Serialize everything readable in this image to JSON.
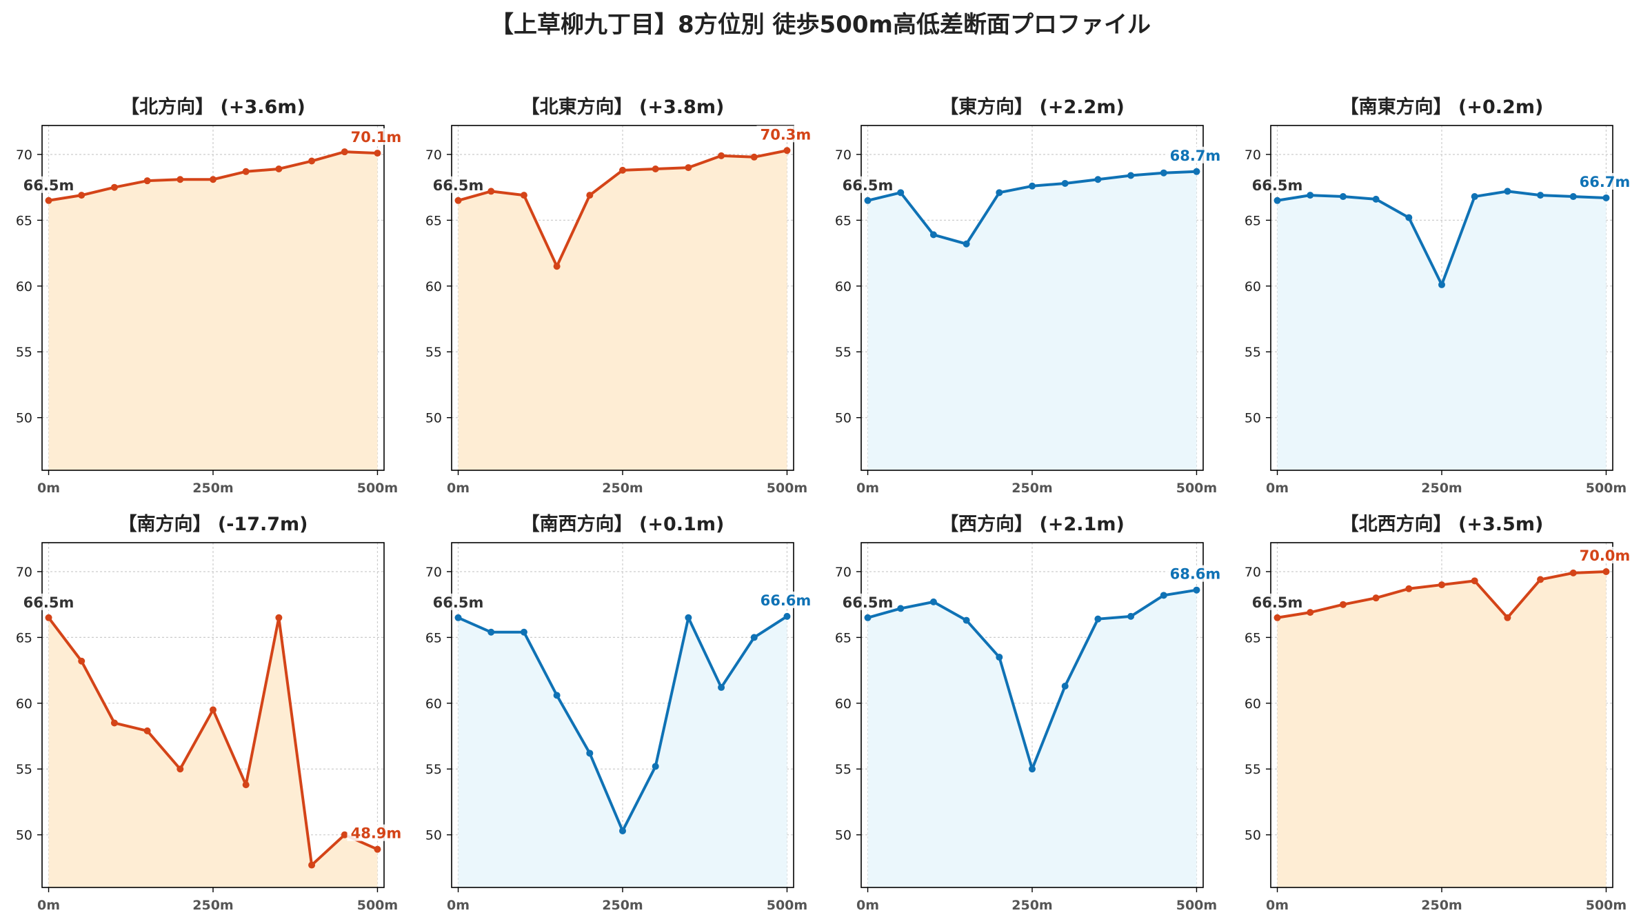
{
  "title": "【上草柳九丁目】8方位別 徒歩500m高低差断面プロファイル",
  "colors": {
    "up_line": "#D44418",
    "up_fill": "#FEEDD4",
    "flat_line": "#0F72B5",
    "flat_fill": "#EBF7FC",
    "grid": "#cccccc",
    "axis": "#000000"
  },
  "chart_data": [
    {
      "type": "area",
      "title": "【北方向】 (+3.6m)",
      "trend": "up",
      "x": [
        0,
        50,
        100,
        150,
        200,
        250,
        300,
        350,
        400,
        450,
        500
      ],
      "y": [
        66.5,
        66.9,
        67.5,
        68.0,
        68.1,
        68.1,
        68.7,
        68.9,
        69.5,
        70.2,
        70.1
      ],
      "x_ticks": [
        0,
        250,
        500
      ],
      "x_tick_labels": [
        "0m",
        "250m",
        "500m"
      ],
      "y_ticks": [
        50,
        55,
        60,
        65,
        70
      ],
      "ylim": [
        46,
        72.2
      ],
      "xlim": [
        -10,
        510
      ],
      "start_label": "66.5m",
      "end_label": "70.1m",
      "grid": true
    },
    {
      "type": "area",
      "title": "【北東方向】 (+3.8m)",
      "trend": "up",
      "x": [
        0,
        50,
        100,
        150,
        200,
        250,
        300,
        350,
        400,
        450,
        500
      ],
      "y": [
        66.5,
        67.2,
        66.9,
        61.5,
        66.9,
        68.8,
        68.9,
        69.0,
        69.9,
        69.8,
        70.3
      ],
      "x_ticks": [
        0,
        250,
        500
      ],
      "x_tick_labels": [
        "0m",
        "250m",
        "500m"
      ],
      "y_ticks": [
        50,
        55,
        60,
        65,
        70
      ],
      "ylim": [
        46,
        72.2
      ],
      "xlim": [
        -10,
        510
      ],
      "start_label": "66.5m",
      "end_label": "70.3m",
      "grid": true
    },
    {
      "type": "area",
      "title": "【東方向】 (+2.2m)",
      "trend": "flat",
      "x": [
        0,
        50,
        100,
        150,
        200,
        250,
        300,
        350,
        400,
        450,
        500
      ],
      "y": [
        66.5,
        67.1,
        63.9,
        63.2,
        67.1,
        67.6,
        67.8,
        68.1,
        68.4,
        68.6,
        68.7
      ],
      "x_ticks": [
        0,
        250,
        500
      ],
      "x_tick_labels": [
        "0m",
        "250m",
        "500m"
      ],
      "y_ticks": [
        50,
        55,
        60,
        65,
        70
      ],
      "ylim": [
        46,
        72.2
      ],
      "xlim": [
        -10,
        510
      ],
      "start_label": "66.5m",
      "end_label": "68.7m",
      "grid": true
    },
    {
      "type": "area",
      "title": "【南東方向】 (+0.2m)",
      "trend": "flat",
      "x": [
        0,
        50,
        100,
        150,
        200,
        250,
        300,
        350,
        400,
        450,
        500
      ],
      "y": [
        66.5,
        66.9,
        66.8,
        66.6,
        65.2,
        60.1,
        66.8,
        67.2,
        66.9,
        66.8,
        66.7
      ],
      "x_ticks": [
        0,
        250,
        500
      ],
      "x_tick_labels": [
        "0m",
        "250m",
        "500m"
      ],
      "y_ticks": [
        50,
        55,
        60,
        65,
        70
      ],
      "ylim": [
        46,
        72.2
      ],
      "xlim": [
        -10,
        510
      ],
      "start_label": "66.5m",
      "end_label": "66.7m",
      "grid": true
    },
    {
      "type": "area",
      "title": "【南方向】 (-17.7m)",
      "trend": "up",
      "x": [
        0,
        50,
        100,
        150,
        200,
        250,
        300,
        350,
        400,
        450,
        500
      ],
      "y": [
        66.5,
        63.2,
        58.5,
        57.9,
        55.0,
        59.5,
        53.8,
        66.5,
        47.7,
        50.0,
        48.9
      ],
      "x_ticks": [
        0,
        250,
        500
      ],
      "x_tick_labels": [
        "0m",
        "250m",
        "500m"
      ],
      "y_ticks": [
        50,
        55,
        60,
        65,
        70
      ],
      "ylim": [
        46,
        72.2
      ],
      "xlim": [
        -10,
        510
      ],
      "start_label": "66.5m",
      "end_label": "48.9m",
      "grid": true
    },
    {
      "type": "area",
      "title": "【南西方向】 (+0.1m)",
      "trend": "flat",
      "x": [
        0,
        50,
        100,
        150,
        200,
        250,
        300,
        350,
        400,
        450,
        500
      ],
      "y": [
        66.5,
        65.4,
        65.4,
        60.6,
        56.2,
        50.3,
        55.2,
        66.5,
        61.2,
        65.0,
        66.6
      ],
      "x_ticks": [
        0,
        250,
        500
      ],
      "x_tick_labels": [
        "0m",
        "250m",
        "500m"
      ],
      "y_ticks": [
        50,
        55,
        60,
        65,
        70
      ],
      "ylim": [
        46,
        72.2
      ],
      "xlim": [
        -10,
        510
      ],
      "start_label": "66.5m",
      "end_label": "66.6m",
      "grid": true
    },
    {
      "type": "area",
      "title": "【西方向】 (+2.1m)",
      "trend": "flat",
      "x": [
        0,
        50,
        100,
        150,
        200,
        250,
        300,
        350,
        400,
        450,
        500
      ],
      "y": [
        66.5,
        67.2,
        67.7,
        66.3,
        63.5,
        55.0,
        61.3,
        66.4,
        66.6,
        68.2,
        68.6
      ],
      "x_ticks": [
        0,
        250,
        500
      ],
      "x_tick_labels": [
        "0m",
        "250m",
        "500m"
      ],
      "y_ticks": [
        50,
        55,
        60,
        65,
        70
      ],
      "ylim": [
        46,
        72.2
      ],
      "xlim": [
        -10,
        510
      ],
      "start_label": "66.5m",
      "end_label": "68.6m",
      "grid": true
    },
    {
      "type": "area",
      "title": "【北西方向】 (+3.5m)",
      "trend": "up",
      "x": [
        0,
        50,
        100,
        150,
        200,
        250,
        300,
        350,
        400,
        450,
        500
      ],
      "y": [
        66.5,
        66.9,
        67.5,
        68.0,
        68.7,
        69.0,
        69.3,
        66.5,
        69.4,
        69.9,
        70.0
      ],
      "x_ticks": [
        0,
        250,
        500
      ],
      "x_tick_labels": [
        "0m",
        "250m",
        "500m"
      ],
      "y_ticks": [
        50,
        55,
        60,
        65,
        70
      ],
      "ylim": [
        46,
        72.2
      ],
      "xlim": [
        -10,
        510
      ],
      "start_label": "66.5m",
      "end_label": "70.0m",
      "grid": true
    }
  ]
}
